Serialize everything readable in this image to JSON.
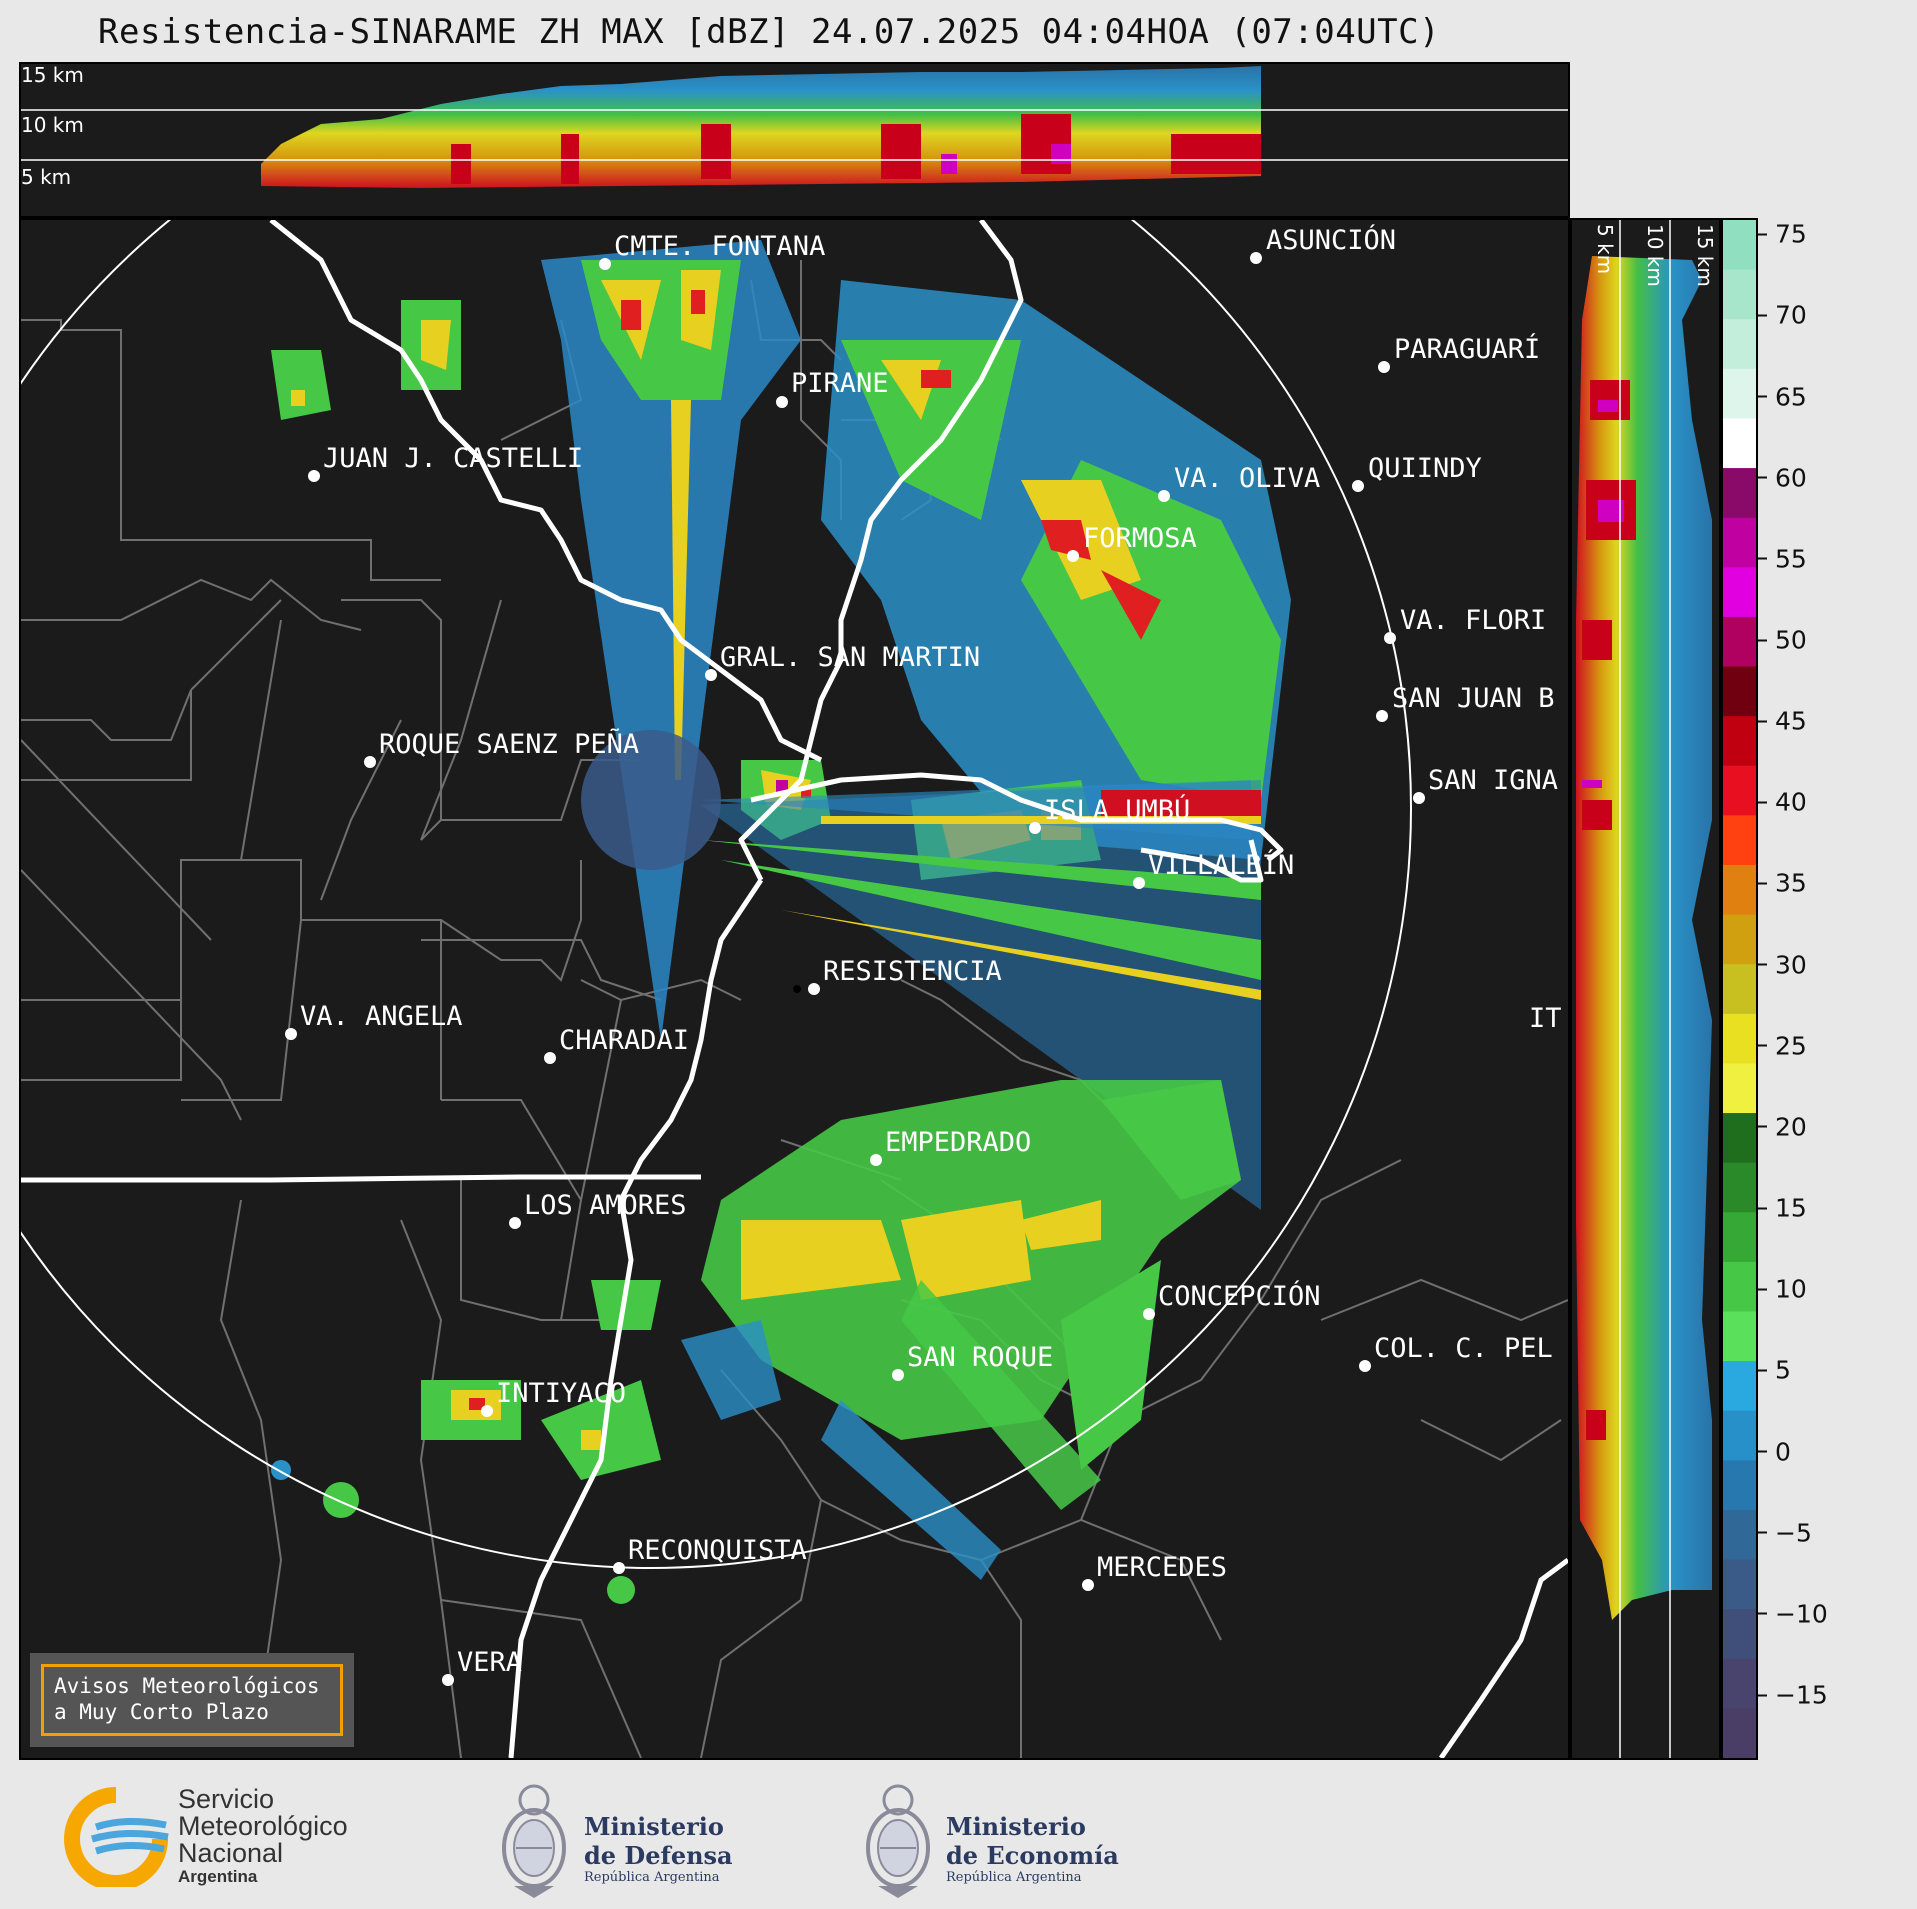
{
  "title": "Resistencia-SINARAME ZH MAX [dBZ] 24.07.2025 04:04HOA (07:04UTC)",
  "top_section": {
    "levels": [
      "15 km",
      "10 km",
      "5 km"
    ]
  },
  "right_section": {
    "levels": [
      "5 km",
      "10 km",
      "15 km"
    ]
  },
  "colorbar": {
    "ticks": [
      "75",
      "70",
      "65",
      "60",
      "55",
      "50",
      "45",
      "40",
      "35",
      "30",
      "25",
      "20",
      "15",
      "10",
      "5",
      "0",
      "−5",
      "−10",
      "−15"
    ],
    "colors": [
      "#8fdfc0",
      "#a8e6cc",
      "#c2eedb",
      "#ddf5ea",
      "#ffffff",
      "#8a0a6a",
      "#c000a0",
      "#e000e0",
      "#b00060",
      "#700010",
      "#c00010",
      "#e81020",
      "#ff4010",
      "#e08010",
      "#d0a010",
      "#c8c020",
      "#e8e020",
      "#f0f040",
      "#1e6e1e",
      "#2a8a2a",
      "#36a836",
      "#46c846",
      "#5ae05a",
      "#2aa8e0",
      "#2890c8",
      "#2878b0",
      "#306898",
      "#3a5a88",
      "#404e7a",
      "#48446e",
      "#4a3e66"
    ],
    "range": [
      -19,
      76
    ]
  },
  "places": [
    {
      "name": "CMTE. FONTANA"
    },
    {
      "name": "ASUNCIÓN"
    },
    {
      "name": "PARAGUARÍ"
    },
    {
      "name": "PIRANE"
    },
    {
      "name": "JUAN J. CASTELLI"
    },
    {
      "name": "VA. OLIVA"
    },
    {
      "name": "QUIINDY"
    },
    {
      "name": "FORMOSA"
    },
    {
      "name": "VA. FLORI"
    },
    {
      "name": "GRAL. SAN MARTIN"
    },
    {
      "name": "SAN JUAN B"
    },
    {
      "name": "ROQUE SAENZ PEÑA"
    },
    {
      "name": "SAN IGNA"
    },
    {
      "name": "ISLA UMBÚ"
    },
    {
      "name": "VILLALBÍN"
    },
    {
      "name": "RESISTENCIA"
    },
    {
      "name": "VA. ANGELA"
    },
    {
      "name": "CHARADAI"
    },
    {
      "name": "EMPEDRADO"
    },
    {
      "name": "LOS AMORES"
    },
    {
      "name": "CONCEPCIÓN"
    },
    {
      "name": "SAN ROQUE"
    },
    {
      "name": "COL. C. PEL"
    },
    {
      "name": "INTIYACO"
    },
    {
      "name": "RECONQUISTA"
    },
    {
      "name": "MERCEDES"
    },
    {
      "name": "VERA"
    },
    {
      "name": "IT"
    }
  ],
  "aviso": {
    "line1": "Avisos Meteorológicos",
    "line2": "a Muy Corto Plazo"
  },
  "footer": {
    "smn": [
      "Servicio",
      "Meteorológico",
      "Nacional",
      "Argentina"
    ],
    "defensa": [
      "Ministerio",
      "de Defensa",
      "República Argentina"
    ],
    "economia": [
      "Ministerio",
      "de Economía",
      "República Argentina"
    ]
  }
}
